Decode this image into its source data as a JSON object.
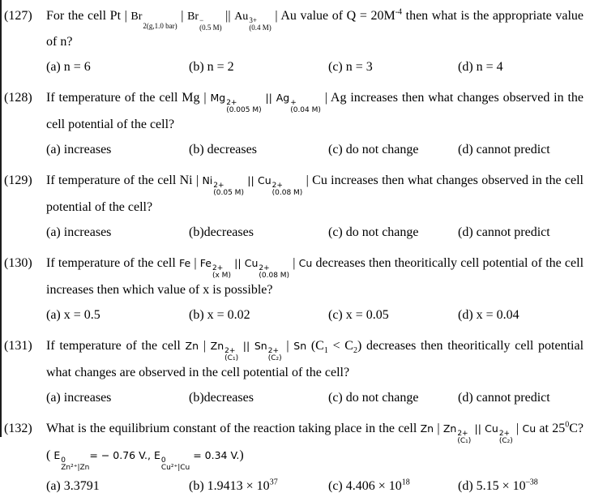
{
  "page": {
    "bg": "#ffffff",
    "text": "#000000",
    "border": "#1c1c1c"
  },
  "questions": [
    {
      "number": "(127)",
      "body": [
        {
          "t": "txt",
          "v": "For the cell Pt | "
        },
        {
          "t": "form",
          "serif": true,
          "base": "Br",
          "sup": "",
          "sub": "2(g,1.0 bar)"
        },
        {
          "t": "txt",
          "v": " | "
        },
        {
          "t": "form",
          "serif": true,
          "base": "Br",
          "sup": "−",
          "sub": "(0.5 M)"
        },
        {
          "t": "txt",
          "v": " || "
        },
        {
          "t": "form",
          "serif": true,
          "base": "Au",
          "sup": "3+",
          "sub": "(0.4 M)"
        },
        {
          "t": "txt",
          "v": " | Au value of Q = 20M"
        },
        {
          "t": "sup",
          "v": "-4"
        },
        {
          "t": "txt",
          "v": " then what is the appropriate value of n?"
        }
      ],
      "options": [
        [
          {
            "t": "txt",
            "v": "(a) n = 6"
          }
        ],
        [
          {
            "t": "txt",
            "v": "(b) n = 2"
          }
        ],
        [
          {
            "t": "txt",
            "v": "(c) n = 3"
          }
        ],
        [
          {
            "t": "txt",
            "v": "(d) n = 4"
          }
        ]
      ]
    },
    {
      "number": "(128)",
      "body": [
        {
          "t": "txt",
          "v": "If temperature of the cell Mg | "
        },
        {
          "t": "form",
          "base": "Mg",
          "sup": "2+",
          "sub": "(0.005 M)"
        },
        {
          "t": "chem",
          "v": " || "
        },
        {
          "t": "form",
          "base": "Ag",
          "sup": "+",
          "sub": "(0.04 M)"
        },
        {
          "t": "txt",
          "v": " | Ag increases then what changes observed in the cell potential of the cell?"
        }
      ],
      "options": [
        [
          {
            "t": "txt",
            "v": "(a) increases"
          }
        ],
        [
          {
            "t": "txt",
            "v": "(b) decreases"
          }
        ],
        [
          {
            "t": "txt",
            "v": "(c) do not change"
          }
        ],
        [
          {
            "t": "txt",
            "v": "(d) cannot predict"
          }
        ]
      ]
    },
    {
      "number": "(129)",
      "body": [
        {
          "t": "txt",
          "v": "If temperature of the cell Ni | "
        },
        {
          "t": "form",
          "base": "Ni",
          "sup": "2+",
          "sub": "(0.05 M)"
        },
        {
          "t": "chem",
          "v": " || "
        },
        {
          "t": "form",
          "base": "Cu",
          "sup": "2+",
          "sub": "(0.08 M)"
        },
        {
          "t": "txt",
          "v": " | Cu increases then what changes observed in the cell potential of the cell?"
        }
      ],
      "options": [
        [
          {
            "t": "txt",
            "v": "(a) increases"
          }
        ],
        [
          {
            "t": "txt",
            "v": "(b)decreases"
          }
        ],
        [
          {
            "t": "txt",
            "v": "(c) do not change"
          }
        ],
        [
          {
            "t": "txt",
            "v": "(d) cannot predict"
          }
        ]
      ]
    },
    {
      "number": "(130)",
      "body": [
        {
          "t": "txt",
          "v": "If temperature of the cell "
        },
        {
          "t": "chem",
          "v": "Fe"
        },
        {
          "t": "txt",
          "v": " | "
        },
        {
          "t": "form",
          "base": "Fe",
          "sup": "2+",
          "sub": "(x M)"
        },
        {
          "t": "chem",
          "v": " || "
        },
        {
          "t": "form",
          "base": "Cu",
          "sup": "2+",
          "sub": "(0.08 M)"
        },
        {
          "t": "txt",
          "v": " | "
        },
        {
          "t": "chem",
          "v": "Cu"
        },
        {
          "t": "txt",
          "v": " decreases then theoritically cell potential of the cell increases then which value of x is possible?"
        }
      ],
      "options": [
        [
          {
            "t": "txt",
            "v": "(a) x = 0.5"
          }
        ],
        [
          {
            "t": "txt",
            "v": "(b) x = 0.02"
          }
        ],
        [
          {
            "t": "txt",
            "v": "(c) x = 0.05"
          }
        ],
        [
          {
            "t": "txt",
            "v": "(d) x = 0.04"
          }
        ]
      ]
    },
    {
      "number": "(131)",
      "body": [
        {
          "t": "txt",
          "v": "If temperature of the cell "
        },
        {
          "t": "chem",
          "v": "Zn"
        },
        {
          "t": "txt",
          "v": " | "
        },
        {
          "t": "form",
          "base": "Zn",
          "sup": "2+",
          "sub": "(C₁)"
        },
        {
          "t": "chem",
          "v": " || "
        },
        {
          "t": "form",
          "base": "Sn",
          "sup": "2+",
          "sub": "(C₂)"
        },
        {
          "t": "txt",
          "v": " | "
        },
        {
          "t": "chem",
          "v": "Sn"
        },
        {
          "t": "txt",
          "v": "  (C"
        },
        {
          "t": "sub",
          "v": "1"
        },
        {
          "t": "txt",
          "v": " < C"
        },
        {
          "t": "sub",
          "v": "2"
        },
        {
          "t": "txt",
          "v": ") decreases then theoritically cell potential what changes are observed in the cell potential of the cell?"
        }
      ],
      "options": [
        [
          {
            "t": "txt",
            "v": "(a) increases"
          }
        ],
        [
          {
            "t": "txt",
            "v": "(b)decreases"
          }
        ],
        [
          {
            "t": "txt",
            "v": "(c) do not change"
          }
        ],
        [
          {
            "t": "txt",
            "v": "(d) cannot predict"
          }
        ]
      ]
    },
    {
      "number": "(132)",
      "body": [
        {
          "t": "txt",
          "v": "What is the equilibrium constant of the reaction taking place in the cell "
        },
        {
          "t": "chem",
          "v": "Zn"
        },
        {
          "t": "txt",
          "v": " | "
        },
        {
          "t": "form",
          "base": "Zn",
          "sup": "2+",
          "sub": "(C₁)"
        },
        {
          "t": "chem",
          "v": " || "
        },
        {
          "t": "form",
          "base": "Cu",
          "sup": "2+",
          "sub": "(C₂)"
        },
        {
          "t": "txt",
          "v": " | "
        },
        {
          "t": "chem",
          "v": "Cu"
        },
        {
          "t": "txt",
          "v": " at 25"
        },
        {
          "t": "sup",
          "v": "0"
        },
        {
          "t": "txt",
          "v": "C?   ( "
        },
        {
          "t": "form",
          "base": "E",
          "sup": "0",
          "sub": "Zn²⁺|Zn"
        },
        {
          "t": "chem",
          "v": "= − 0.76 V., "
        },
        {
          "t": "form",
          "base": "E",
          "sup": "0",
          "sub": "Cu²⁺|Cu"
        },
        {
          "t": "chem",
          "v": " = 0.34 V."
        },
        {
          "t": "txt",
          "v": ")"
        }
      ],
      "options": [
        [
          {
            "t": "txt",
            "v": "(a) 3.3791"
          }
        ],
        [
          {
            "t": "txt",
            "v": "(b) 1.9413 × 10"
          },
          {
            "t": "sup",
            "v": "37"
          }
        ],
        [
          {
            "t": "txt",
            "v": "(c) 4.406 × 10"
          },
          {
            "t": "sup",
            "v": "18"
          }
        ],
        [
          {
            "t": "txt",
            "v": "(d) 5.15 × 10"
          },
          {
            "t": "sup",
            "v": "–38"
          }
        ]
      ]
    }
  ]
}
